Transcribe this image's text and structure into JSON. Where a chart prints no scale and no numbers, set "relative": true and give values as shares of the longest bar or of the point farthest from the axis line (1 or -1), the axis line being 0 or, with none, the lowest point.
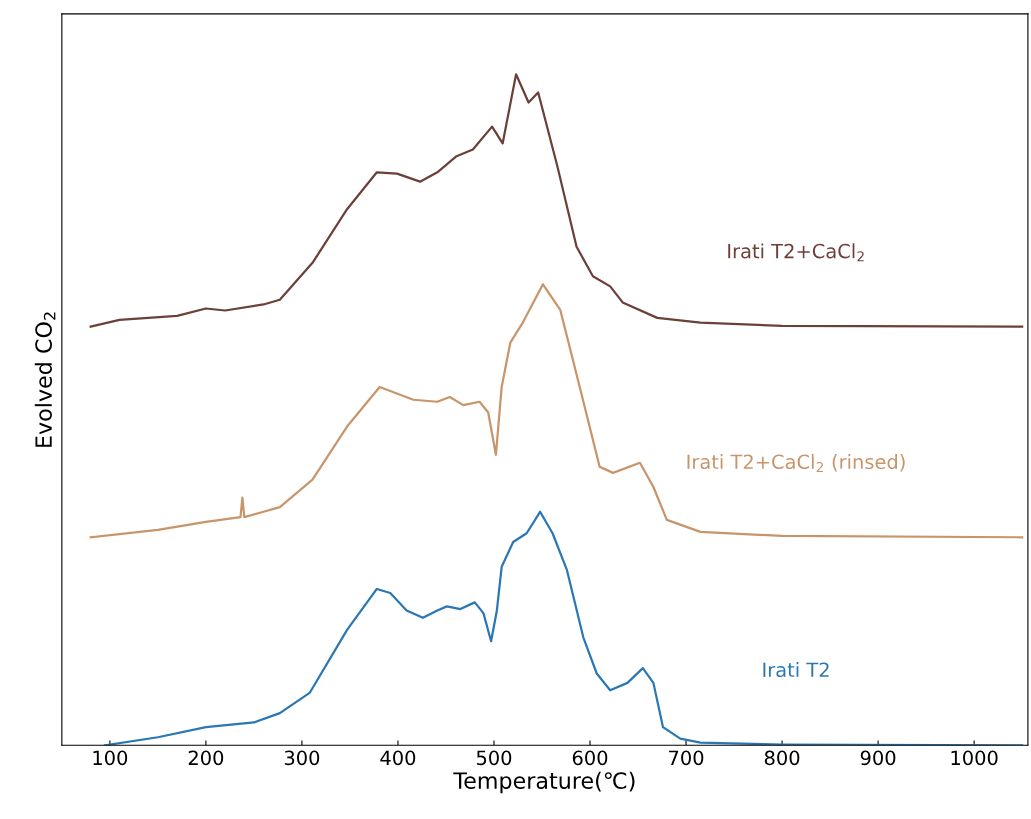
{
  "chart_data": {
    "type": "line",
    "xlabel": "Temperature(℃)",
    "ylabel": "Evolved CO$_{2}$",
    "relative": true,
    "xlim": [
      50,
      1056
    ],
    "xticks": [
      100,
      200,
      300,
      400,
      500,
      600,
      700,
      800,
      900,
      1000
    ],
    "grid": false,
    "legend": false,
    "marker": "none",
    "line_style": "solid",
    "series": [
      {
        "name": "Irati T2+CaCl$_{2}$",
        "color": "#6b4038",
        "x": [
          80,
          110,
          170,
          200,
          220,
          260,
          277,
          311,
          347,
          378,
          399,
          423,
          441,
          461,
          478,
          498,
          509,
          523,
          536,
          546,
          566,
          586,
          603,
          621,
          634,
          670,
          715,
          800,
          1050
        ],
        "values": [
          0.624,
          0.634,
          0.64,
          0.651,
          0.648,
          0.657,
          0.664,
          0.719,
          0.799,
          0.854,
          0.852,
          0.84,
          0.854,
          0.878,
          0.888,
          0.922,
          0.897,
          1.0,
          0.958,
          0.973,
          0.863,
          0.743,
          0.699,
          0.684,
          0.66,
          0.637,
          0.63,
          0.625,
          0.624
        ]
      },
      {
        "name": "Irati T2+CaCl$_{2}$ (rinsed)",
        "color": "#c8946a",
        "x": [
          80,
          150,
          200,
          236,
          238,
          240,
          260,
          277,
          311,
          347,
          381,
          416,
          441,
          454,
          468,
          485,
          494,
          502,
          508,
          517,
          530,
          551,
          569,
          590,
          610,
          624,
          652,
          666,
          680,
          715,
          800,
          1050
        ],
        "values": [
          0.31,
          0.321,
          0.333,
          0.34,
          0.369,
          0.34,
          0.348,
          0.355,
          0.396,
          0.475,
          0.534,
          0.515,
          0.512,
          0.519,
          0.507,
          0.512,
          0.496,
          0.433,
          0.534,
          0.6,
          0.63,
          0.687,
          0.649,
          0.53,
          0.415,
          0.406,
          0.421,
          0.385,
          0.336,
          0.318,
          0.312,
          0.31
        ]
      },
      {
        "name": "Irati T2",
        "color": "#2a77b4",
        "x": [
          95,
          150,
          200,
          250,
          277,
          308,
          347,
          378,
          392,
          409,
          426,
          441,
          451,
          465,
          480,
          489,
          497,
          503,
          508,
          520,
          534,
          548,
          561,
          576,
          593,
          607,
          621,
          639,
          655,
          666,
          676,
          694,
          715,
          800,
          1050
        ],
        "values": [
          0.0,
          0.012,
          0.027,
          0.034,
          0.048,
          0.078,
          0.172,
          0.233,
          0.227,
          0.201,
          0.19,
          0.201,
          0.207,
          0.203,
          0.213,
          0.197,
          0.155,
          0.201,
          0.266,
          0.303,
          0.316,
          0.348,
          0.316,
          0.261,
          0.161,
          0.107,
          0.082,
          0.093,
          0.115,
          0.093,
          0.027,
          0.01,
          0.004,
          0.001,
          0.0
        ]
      }
    ]
  }
}
